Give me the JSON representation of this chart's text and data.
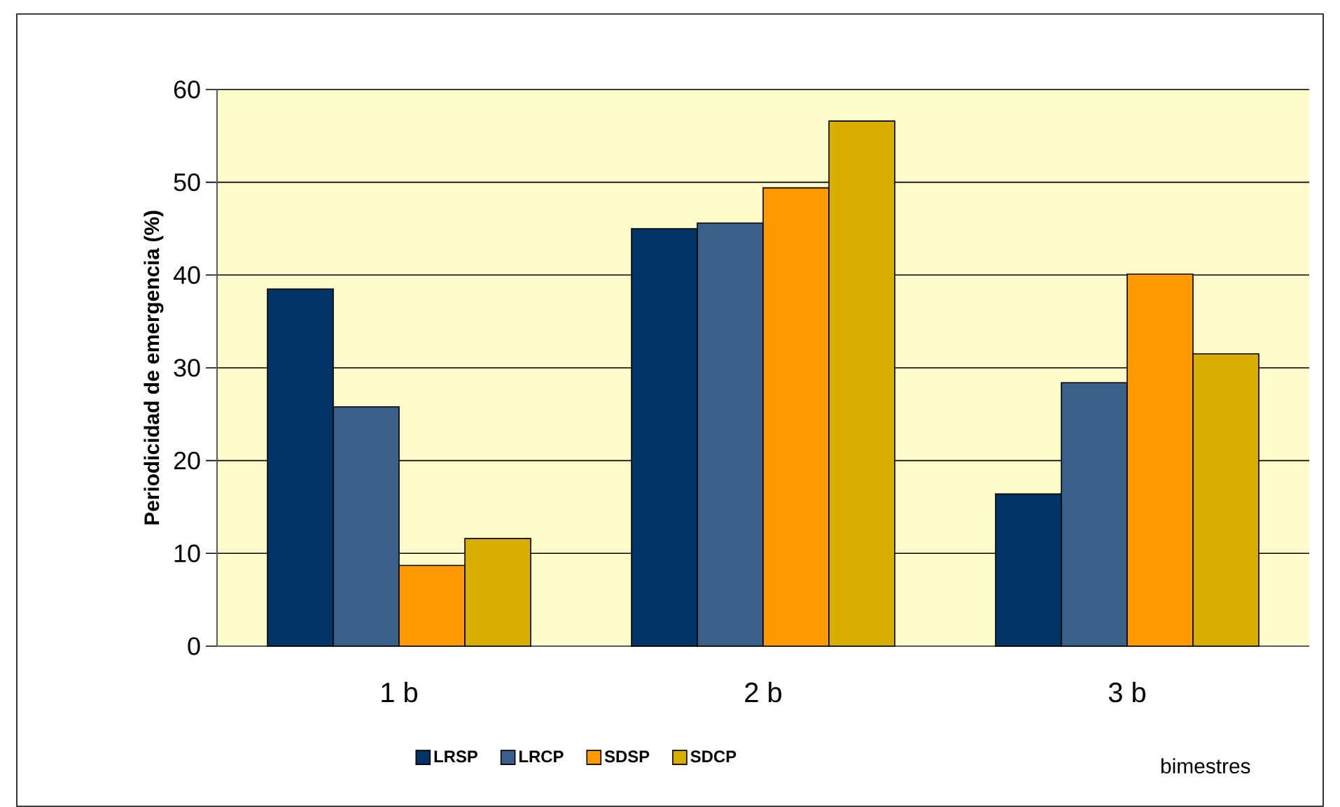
{
  "chart_data": {
    "type": "bar",
    "ylabel": "Periodicidad de emergencia (%)",
    "xlabel": "bimestres",
    "categories": [
      "1 b",
      "2 b",
      "3 b"
    ],
    "series": [
      {
        "name": "LRSP",
        "color": "#003366",
        "values": [
          38.5,
          45.0,
          16.4
        ]
      },
      {
        "name": "LRCP",
        "color": "#3a5f8a",
        "values": [
          25.8,
          45.6,
          28.4
        ]
      },
      {
        "name": "SDSP",
        "color": "#ff9900",
        "values": [
          8.7,
          49.4,
          40.1
        ]
      },
      {
        "name": "SDCP",
        "color": "#d9ad00",
        "values": [
          11.6,
          56.6,
          31.5
        ]
      }
    ],
    "ylim": [
      0,
      60
    ],
    "yticks": [
      0,
      10,
      20,
      30,
      40,
      50,
      60
    ],
    "grid": "y",
    "legend": "bottom"
  }
}
